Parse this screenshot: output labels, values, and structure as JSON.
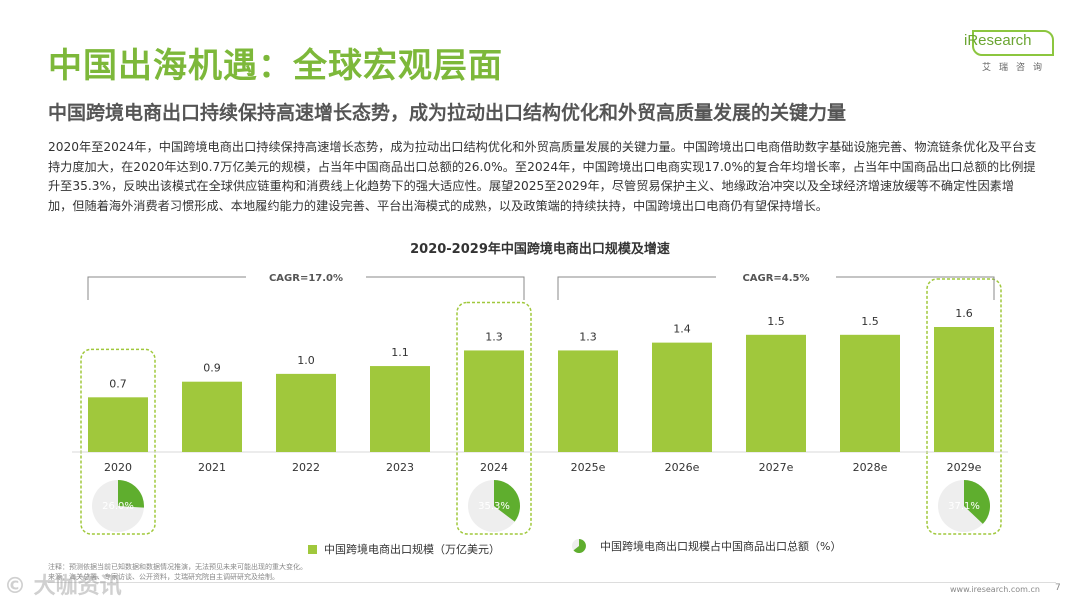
{
  "header": {
    "title": "中国出海机遇：全球宏观层面",
    "subtitle": "中国跨境电商出口持续保持高速增长态势，成为拉动出口结构优化和外贸高质量发展的关键力量"
  },
  "logo": {
    "brand": "iResearch",
    "sub": "艾瑞咨询"
  },
  "body_text": "2020年至2024年，中国跨境电商出口持续保持高速增长态势，成为拉动出口结构优化和外贸高质量发展的关键力量。中国跨境出口电商借助数字基础设施完善、物流链条优化及平台支持力度加大，在2020年达到0.7万亿美元的规模，占当年中国商品出口总额的26.0%。至2024年，中国跨境出口电商实现17.0%的复合年均增长率，占当年中国商品出口总额的比例提升至35.3%，反映出该模式在全球供应链重构和消费线上化趋势下的强大适应性。展望2025至2029年，尽管贸易保护主义、地缘政治冲突以及全球经济增速放缓等不确定性因素增加，但随着海外消费者习惯形成、本地履约能力的建设完善、平台出海模式的成熟，以及政策端的持续扶持，中国跨境出口电商仍有望保持增长。",
  "chart_data": {
    "type": "bar",
    "title": "2020-2029年中国跨境电商出口规模及增速",
    "categories": [
      "2020",
      "2021",
      "2022",
      "2023",
      "2024",
      "2025e",
      "2026e",
      "2027e",
      "2028e",
      "2029e"
    ],
    "series": [
      {
        "name": "中国跨境电商出口规模（万亿美元）",
        "values": [
          0.7,
          0.9,
          1.0,
          1.1,
          1.3,
          1.3,
          1.4,
          1.5,
          1.5,
          1.6
        ],
        "labels": [
          "0.7",
          "0.9",
          "1.0",
          "1.1",
          "1.3",
          "1.3",
          "1.4",
          "1.5",
          "1.5",
          "1.6"
        ]
      }
    ],
    "share": {
      "name": "中国跨境电商出口规模占中国商品出口总额（%）",
      "points": [
        {
          "category": "2020",
          "value": 26.0,
          "label": "26.0%"
        },
        {
          "category": "2024",
          "value": 35.3,
          "label": "35.3%"
        },
        {
          "category": "2029e",
          "value": 37.1,
          "label": "37.1%"
        }
      ]
    },
    "annotations": [
      {
        "text": "CAGR=17.0%",
        "from": "2020",
        "to": "2024"
      },
      {
        "text": "CAGR=4.5%",
        "from": "2025e",
        "to": "2029e"
      }
    ],
    "ylim": [
      0,
      1.6
    ],
    "grid": false,
    "legend": "bottom",
    "colors": {
      "bar": "#A0C83C",
      "pie": "#5FAE2E",
      "pie_bg": "#EEEEEE",
      "highlight": "#A0C83C"
    }
  },
  "notes": [
    "注释：预测依据当前已知数据和数据情况推演，无法预见未来可能出现的重大变化。",
    "来源：海关总署、专家访谈、公开资料，艾瑞研究院自主调研研究及绘制。"
  ],
  "footer": {
    "url": "www.iresearch.com.cn",
    "page": "7",
    "watermark": "© 大咖资讯"
  }
}
